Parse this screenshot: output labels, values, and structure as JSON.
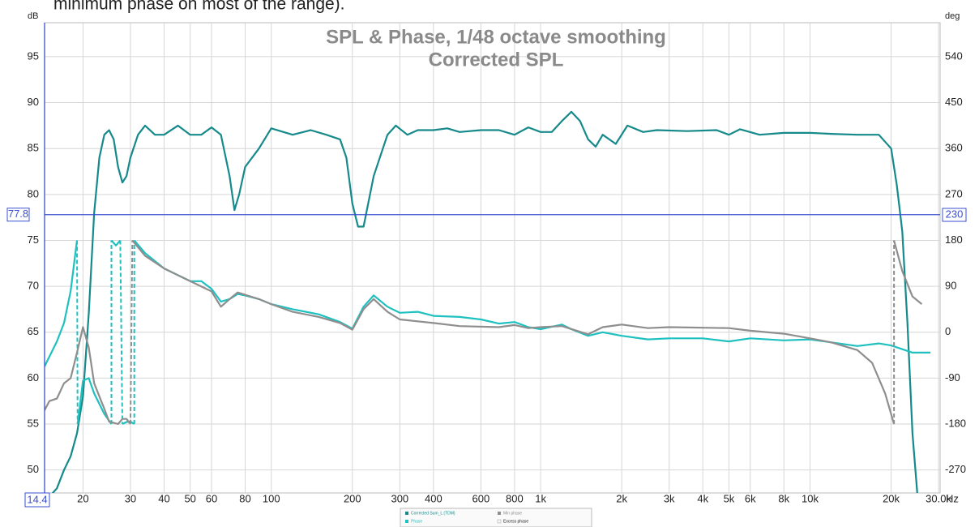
{
  "page_note": "minimum phase on most of the range).",
  "chart_data": {
    "type": "line",
    "title": "SPL & Phase, 1/48 octave smoothing",
    "subtitle": "Corrected SPL",
    "y_label": "dB",
    "y2_label": "deg",
    "x_label": "Hz",
    "log_x": true,
    "grid": true,
    "xlim": [
      14.4,
      30400
    ],
    "ylim": [
      47.5,
      98.7
    ],
    "y2lim": [
      -315,
      606.6
    ],
    "xticks": [
      20,
      30,
      40,
      50,
      60,
      80,
      100,
      200,
      300,
      400,
      600,
      800,
      {
        "value": 1000,
        "label": "1k"
      },
      {
        "value": 2000,
        "label": "2k"
      },
      {
        "value": 3000,
        "label": "3k"
      },
      {
        "value": 4000,
        "label": "4k"
      },
      {
        "value": 5000,
        "label": "5k"
      },
      {
        "value": 6000,
        "label": "6k"
      },
      {
        "value": 8000,
        "label": "8k"
      },
      {
        "value": 10000,
        "label": "10k"
      },
      {
        "value": 20000,
        "label": "20k"
      },
      {
        "value": 30000,
        "label": "30.0k"
      }
    ],
    "yticks": [
      50,
      55,
      60,
      65,
      70,
      75,
      80,
      85,
      90,
      95
    ],
    "y2ticks": [
      -270,
      -180,
      -90,
      0,
      90,
      180,
      270,
      360,
      450,
      540
    ],
    "cursor": {
      "x": 14.4,
      "y": 77.8,
      "y2": 230,
      "color": "#3a4fd0"
    },
    "series": [
      {
        "name": "Corrected Sum_L (TDM)",
        "color": "#16898b",
        "x": [
          14.4,
          16,
          17,
          18,
          19,
          20,
          21,
          22,
          23,
          24,
          25,
          26,
          27,
          28,
          29,
          30,
          32,
          34,
          37,
          40,
          45,
          50,
          55,
          60,
          65,
          70,
          73,
          76,
          80,
          90,
          100,
          120,
          140,
          160,
          180,
          190,
          200,
          210,
          220,
          240,
          270,
          290,
          320,
          350,
          400,
          450,
          500,
          600,
          700,
          800,
          900,
          1000,
          1100,
          1200,
          1300,
          1400,
          1500,
          1600,
          1700,
          1900,
          2100,
          2400,
          2700,
          3500,
          4500,
          5000,
          5500,
          6500,
          8000,
          10000,
          12000,
          15000,
          18000,
          20000,
          21000,
          22000,
          23000,
          24000,
          25000
        ],
        "values": [
          46.5,
          48,
          50,
          51.5,
          54,
          58,
          67,
          78,
          84,
          86.5,
          87,
          86,
          83,
          81.3,
          82,
          84,
          86.5,
          87.5,
          86.5,
          86.5,
          87.5,
          86.5,
          86.5,
          87.3,
          86.5,
          82,
          78.3,
          80,
          83,
          85,
          87.2,
          86.5,
          87,
          86.5,
          86,
          84,
          79,
          76.5,
          76.5,
          82,
          86.5,
          87.5,
          86.5,
          87,
          87,
          87.2,
          86.8,
          87,
          87,
          86.5,
          87.3,
          86.8,
          86.8,
          88,
          89,
          88,
          86,
          85.2,
          86.5,
          85.5,
          87.5,
          86.8,
          87,
          86.9,
          87,
          86.5,
          87.1,
          86.5,
          86.7,
          86.7,
          86.6,
          86.5,
          86.5,
          85,
          81,
          76,
          66,
          54,
          47.5
        ]
      },
      {
        "name": "Phase",
        "color": "#1fc0c0",
        "axis": "y2",
        "x": [
          14.4,
          16,
          17,
          18,
          19,
          null,
          19.1,
          20,
          21,
          22,
          24,
          25.5,
          null,
          25.5,
          26.5,
          27.5,
          null,
          28,
          29,
          30,
          31,
          null,
          31,
          34,
          40,
          50,
          55,
          60,
          65,
          70,
          75,
          80,
          90,
          100,
          120,
          150,
          180,
          200,
          220,
          240,
          270,
          300,
          350,
          400,
          500,
          600,
          700,
          800,
          900,
          1000,
          1200,
          1300,
          1500,
          1700,
          2000,
          2500,
          3000,
          4000,
          5000,
          6000,
          8000,
          10000,
          12000,
          15000,
          18000,
          20000,
          24000,
          28000
        ],
        "values": [
          -67,
          -18,
          18,
          81,
          180,
          null,
          -180,
          -95,
          -90,
          -120,
          -160,
          -180,
          null,
          180,
          170,
          180,
          null,
          -180,
          -176,
          -175,
          -180,
          null,
          180,
          155,
          125,
          100,
          100,
          85,
          60,
          65,
          75,
          72,
          65,
          55,
          45,
          35,
          20,
          7,
          50,
          72,
          50,
          38,
          40,
          32,
          30,
          25,
          17,
          20,
          10,
          6,
          15,
          6,
          -7,
          0,
          -7,
          -14,
          -12,
          -12,
          -18,
          -12,
          -16,
          -14,
          -20,
          -27,
          -22,
          -26,
          -40,
          -40
        ]
      },
      {
        "name": "Min phase",
        "color": "#8e8e8e",
        "axis": "y2",
        "x": [
          14.4,
          15,
          16,
          17,
          18,
          19,
          20,
          21,
          22,
          24,
          25,
          27,
          28,
          29,
          30,
          null,
          30.5,
          34,
          40,
          50,
          60,
          65,
          70,
          75,
          90,
          100,
          120,
          150,
          180,
          200,
          220,
          240,
          270,
          300,
          400,
          500,
          700,
          800,
          900,
          1000,
          1200,
          1500,
          1700,
          2000,
          2500,
          3000,
          5000,
          6000,
          8000,
          10000,
          12000,
          15000,
          17000,
          19000,
          20500,
          null,
          20500,
          22000,
          24000,
          26000
        ],
        "values": [
          -153,
          -135,
          -130,
          -100,
          -90,
          -40,
          10,
          -30,
          -100,
          -150,
          -175,
          -180,
          -170,
          -170,
          -180,
          null,
          180,
          150,
          125,
          100,
          80,
          50,
          65,
          78,
          65,
          55,
          40,
          30,
          18,
          5,
          45,
          65,
          40,
          25,
          18,
          12,
          10,
          14,
          8,
          10,
          12,
          -4,
          10,
          15,
          8,
          10,
          8,
          3,
          -3,
          -12,
          -20,
          -35,
          -60,
          -120,
          -180,
          null,
          180,
          120,
          70,
          55
        ]
      }
    ],
    "legend_extra": "Excess phase"
  }
}
